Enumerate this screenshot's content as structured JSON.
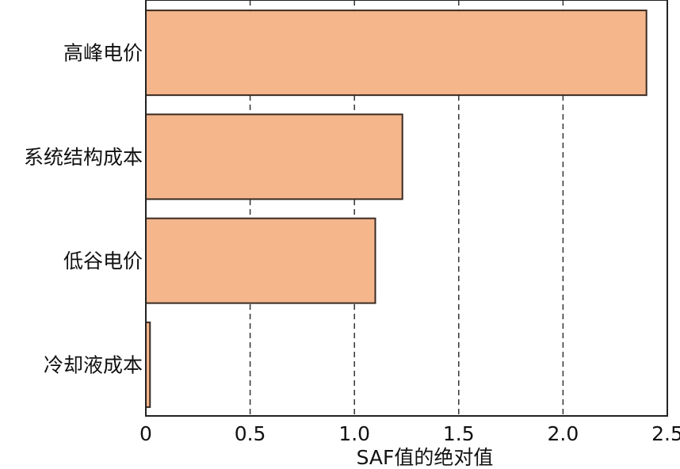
{
  "chart_data": {
    "type": "bar",
    "orientation": "horizontal",
    "categories": [
      "高峰电价",
      "系统结构成本",
      "低谷电价",
      "冷却液成本"
    ],
    "values": [
      2.4,
      1.23,
      1.1,
      0.02
    ],
    "xlabel": "SAF值的绝对值",
    "xlim": [
      0,
      2.5
    ],
    "xticks": [
      0,
      0.5,
      1.0,
      1.5,
      2.0,
      2.5
    ],
    "xtick_labels": [
      "0",
      "0.5",
      "1.0",
      "1.5",
      "2.0",
      "2.5"
    ],
    "grid": "vertical dashed at 0.5, 1.0, 1.5, 2.0",
    "bar_color": "#f5b68c",
    "bar_edge_color": "#3a2a22"
  }
}
